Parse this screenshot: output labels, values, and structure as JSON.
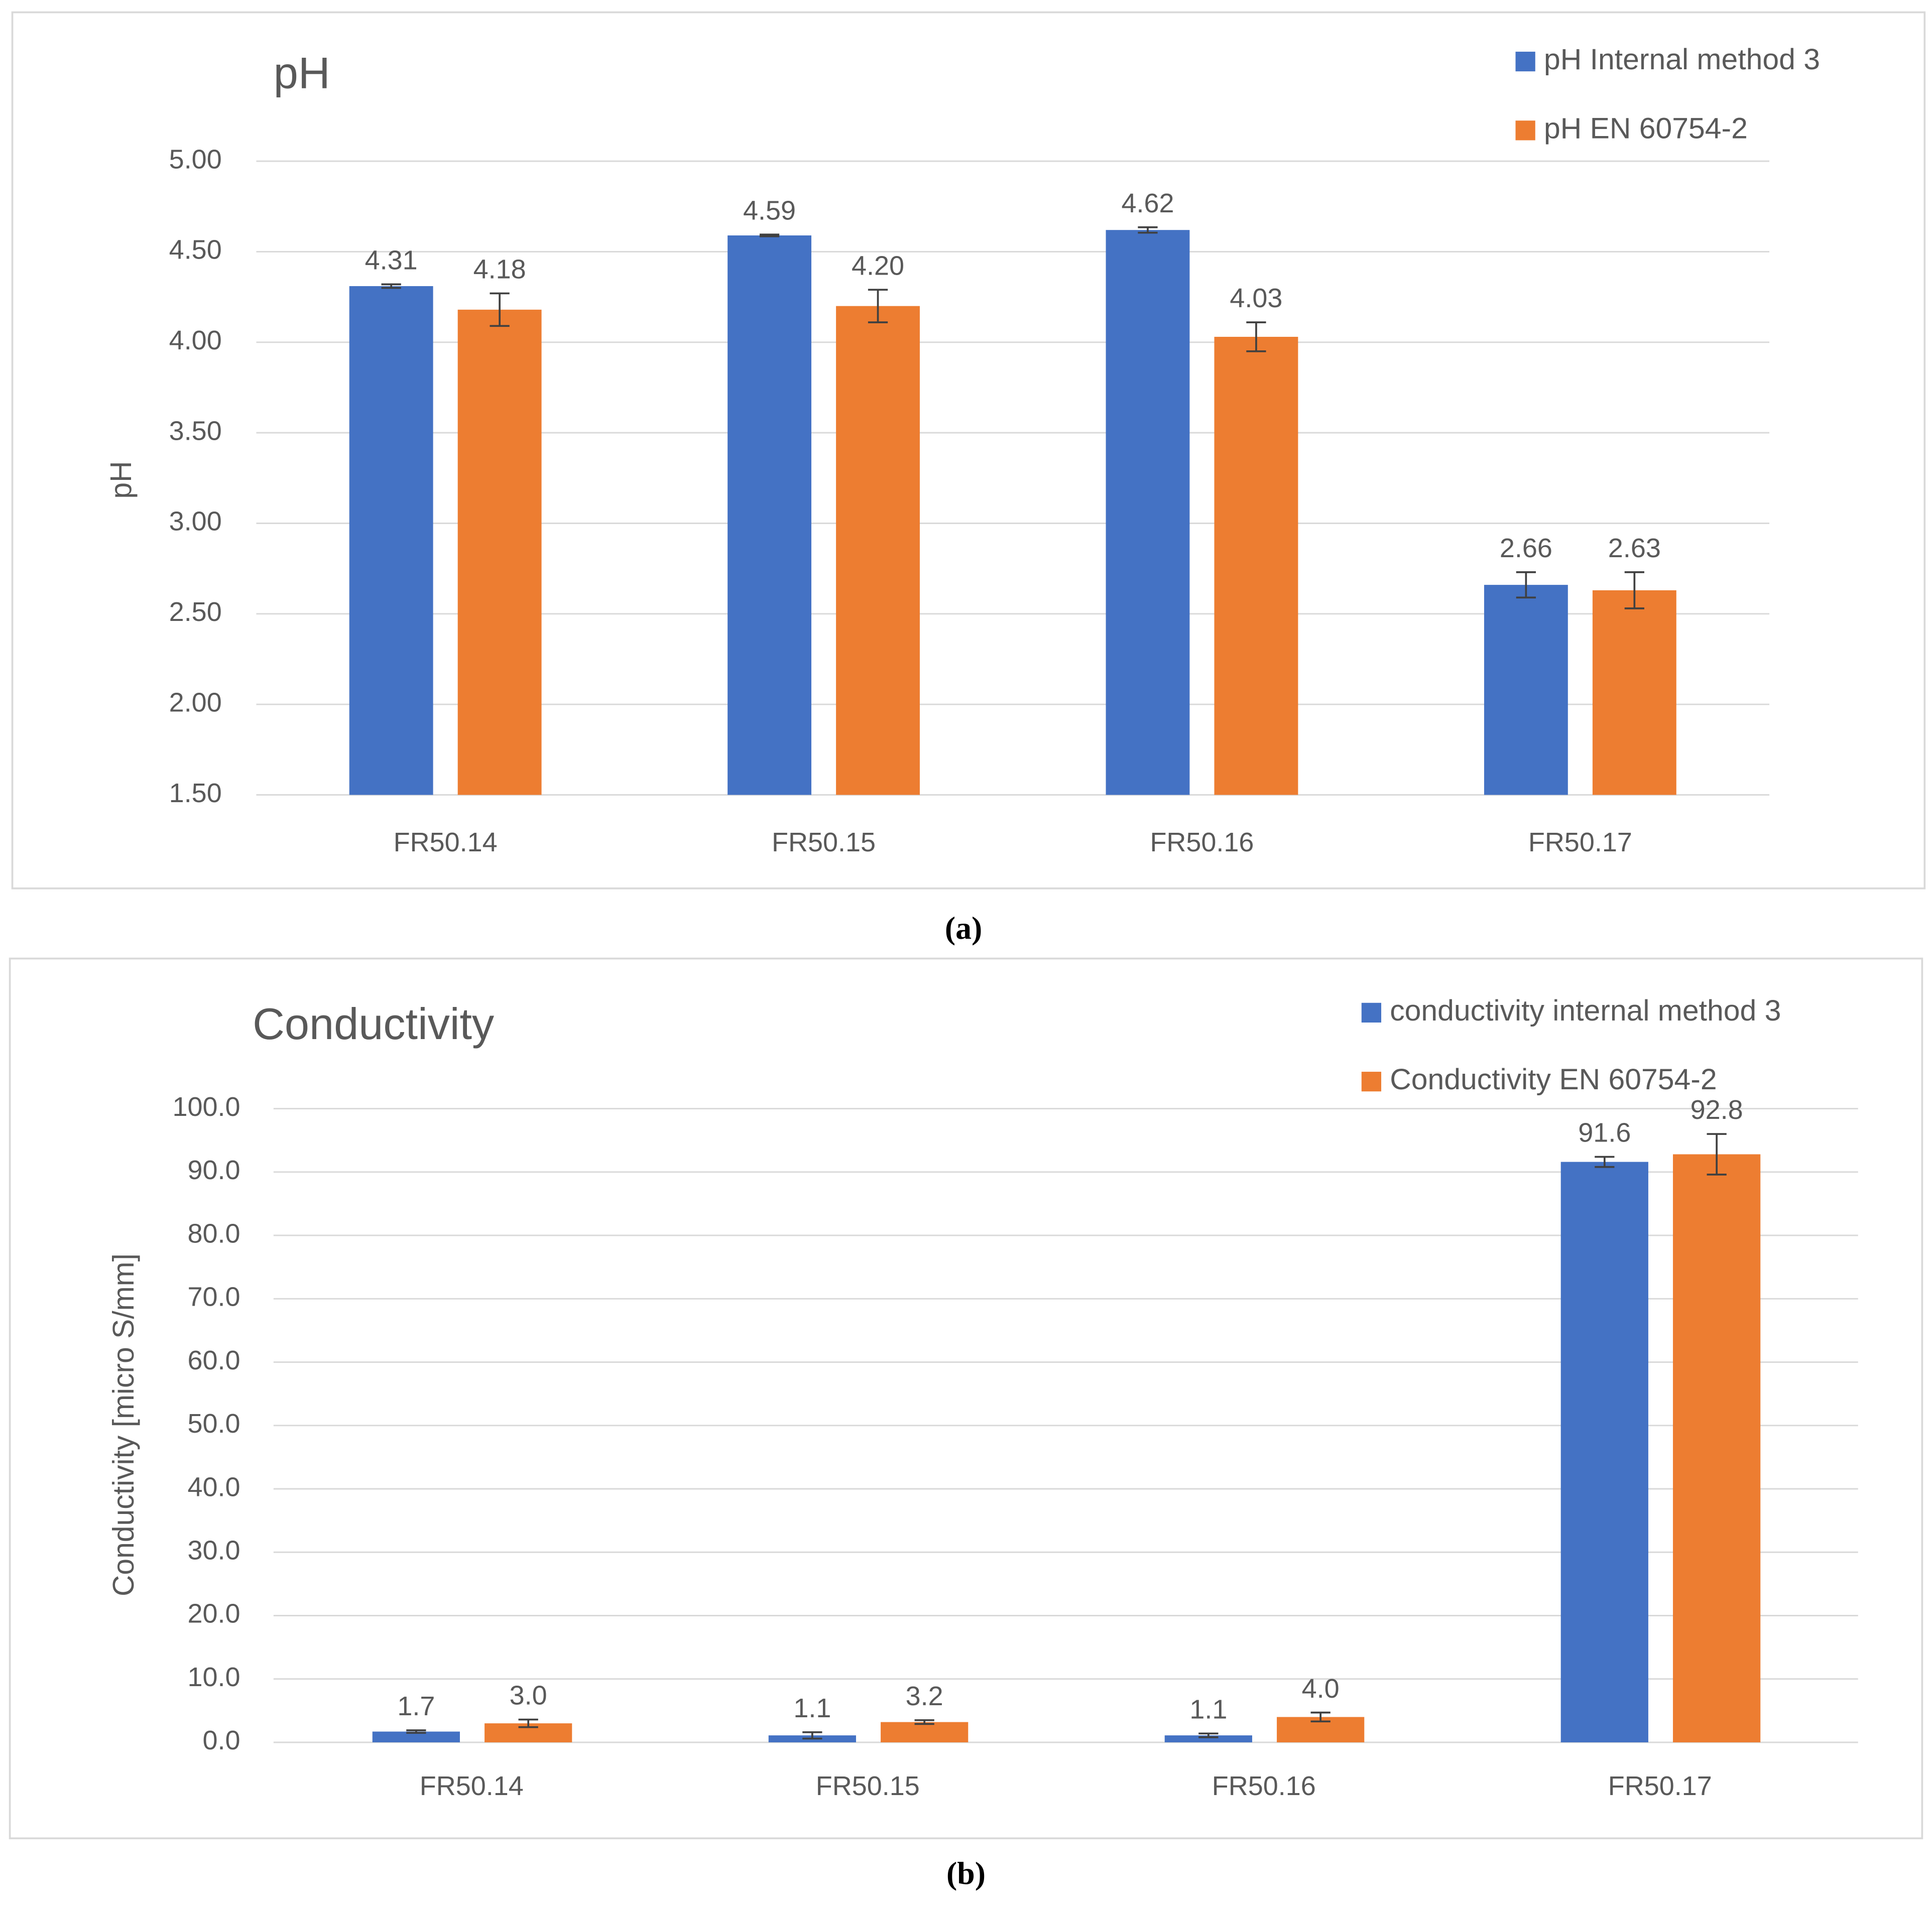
{
  "chart_data": [
    {
      "type": "bar",
      "title": "pH",
      "y_label": "pH",
      "categories": [
        "FR50.14",
        "FR50.15",
        "FR50.16",
        "FR50.17"
      ],
      "series": [
        {
          "name": "pH Internal method 3",
          "color": "#4472c4",
          "values": [
            4.31,
            4.59,
            4.62,
            2.66
          ],
          "value_labels": [
            "4.31",
            "4.59",
            "4.62",
            "2.66"
          ],
          "errors": [
            0.01,
            0.005,
            0.015,
            0.07
          ]
        },
        {
          "name": "pH EN 60754-2",
          "color": "#ed7d31",
          "values": [
            4.18,
            4.2,
            4.03,
            2.63
          ],
          "value_labels": [
            "4.18",
            "4.20",
            "4.03",
            "2.63"
          ],
          "errors": [
            0.09,
            0.09,
            0.08,
            0.1
          ]
        }
      ],
      "ylim": [
        1.5,
        5
      ],
      "yticks": [
        {
          "value": 1.5,
          "label": "1.50"
        },
        {
          "value": 2,
          "label": "2.00"
        },
        {
          "value": 2.5,
          "label": "2.50"
        },
        {
          "value": 3,
          "label": "3.00"
        },
        {
          "value": 3.5,
          "label": "3.50"
        },
        {
          "value": 4,
          "label": "4.00"
        },
        {
          "value": 4.5,
          "label": "4.50"
        },
        {
          "value": 5,
          "label": "5.00"
        }
      ],
      "grid": true,
      "legend": "upper right",
      "caption": "(a)"
    },
    {
      "type": "bar",
      "title": "Conductivity",
      "y_label": "Conductivity [micro S/mm]",
      "categories": [
        "FR50.14",
        "FR50.15",
        "FR50.16",
        "FR50.17"
      ],
      "series": [
        {
          "name": "conductivity internal method 3",
          "color": "#4472c4",
          "values": [
            1.7,
            1.1,
            1.1,
            91.6
          ],
          "value_labels": [
            "1.7",
            "1.1",
            "1.1",
            "91.6"
          ],
          "errors": [
            0.2,
            0.5,
            0.3,
            0.8
          ]
        },
        {
          "name": "Conductivity EN 60754-2",
          "color": "#ed7d31",
          "values": [
            3,
            3.2,
            4,
            92.8
          ],
          "value_labels": [
            "3.0",
            "3.2",
            "4.0",
            "92.8"
          ],
          "errors": [
            0.6,
            0.3,
            0.7,
            3.2
          ]
        }
      ],
      "ylim": [
        0,
        100
      ],
      "yticks": [
        {
          "value": 0,
          "label": "0.0"
        },
        {
          "value": 10,
          "label": "10.0"
        },
        {
          "value": 20,
          "label": "20.0"
        },
        {
          "value": 30,
          "label": "30.0"
        },
        {
          "value": 40,
          "label": "40.0"
        },
        {
          "value": 50,
          "label": "50.0"
        },
        {
          "value": 60,
          "label": "60.0"
        },
        {
          "value": 70,
          "label": "70.0"
        },
        {
          "value": 80,
          "label": "80.0"
        },
        {
          "value": 90,
          "label": "90.0"
        },
        {
          "value": 100,
          "label": "100.0"
        }
      ],
      "grid": true,
      "legend": "upper right",
      "caption": "(b)"
    }
  ]
}
